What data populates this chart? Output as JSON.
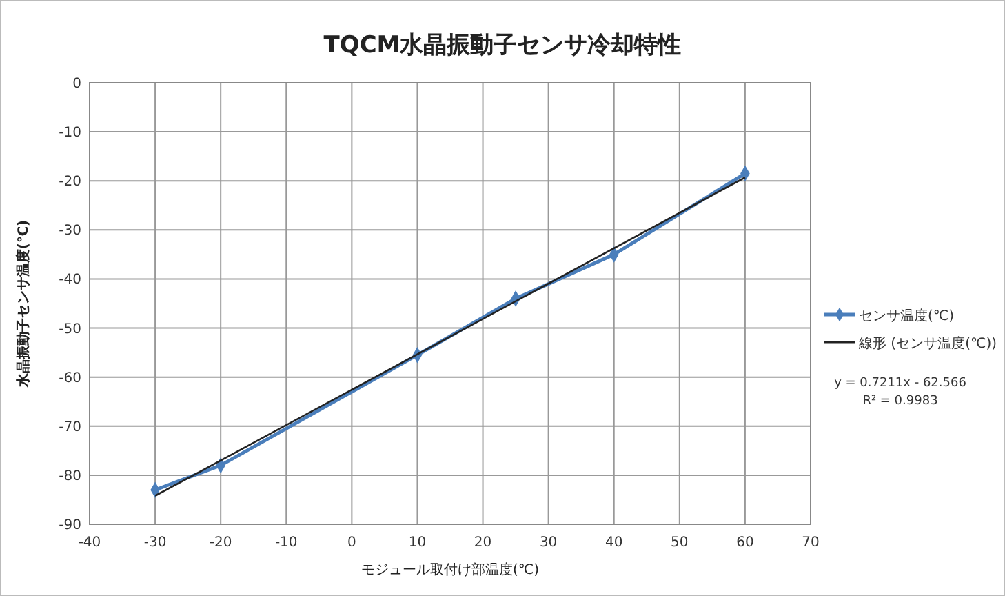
{
  "chart_data": {
    "type": "line",
    "title": "TQCM水晶振動子センサ冷却特性",
    "xlabel": "モジュール取付け部温度(℃)",
    "ylabel": "水晶振動子センサ温度(℃)",
    "series": [
      {
        "name": "センサ温度(℃)",
        "color": "#4a7ebb",
        "x": [
          -30,
          -20,
          10,
          25,
          40,
          60
        ],
        "values": [
          -83,
          -78,
          -55.5,
          -44,
          -35,
          -18.5
        ],
        "marker": "diamond"
      },
      {
        "name": "線形 (センサ温度(℃))",
        "color": "#222222",
        "x": [
          -30,
          60
        ],
        "values": [
          -84.2,
          -19.3
        ],
        "marker": "none"
      }
    ],
    "xlim": [
      -40,
      70
    ],
    "xticks": [
      -40,
      -30,
      -20,
      -10,
      0,
      10,
      20,
      30,
      40,
      50,
      60,
      70
    ],
    "ylim": [
      -90,
      0
    ],
    "yticks": [
      -90,
      -80,
      -70,
      -60,
      -50,
      -40,
      -30,
      -20,
      -10,
      0
    ],
    "grid": true,
    "legend": "right",
    "annotations": [
      "y = 0.7211x - 62.566",
      "R² = 0.9983"
    ]
  }
}
